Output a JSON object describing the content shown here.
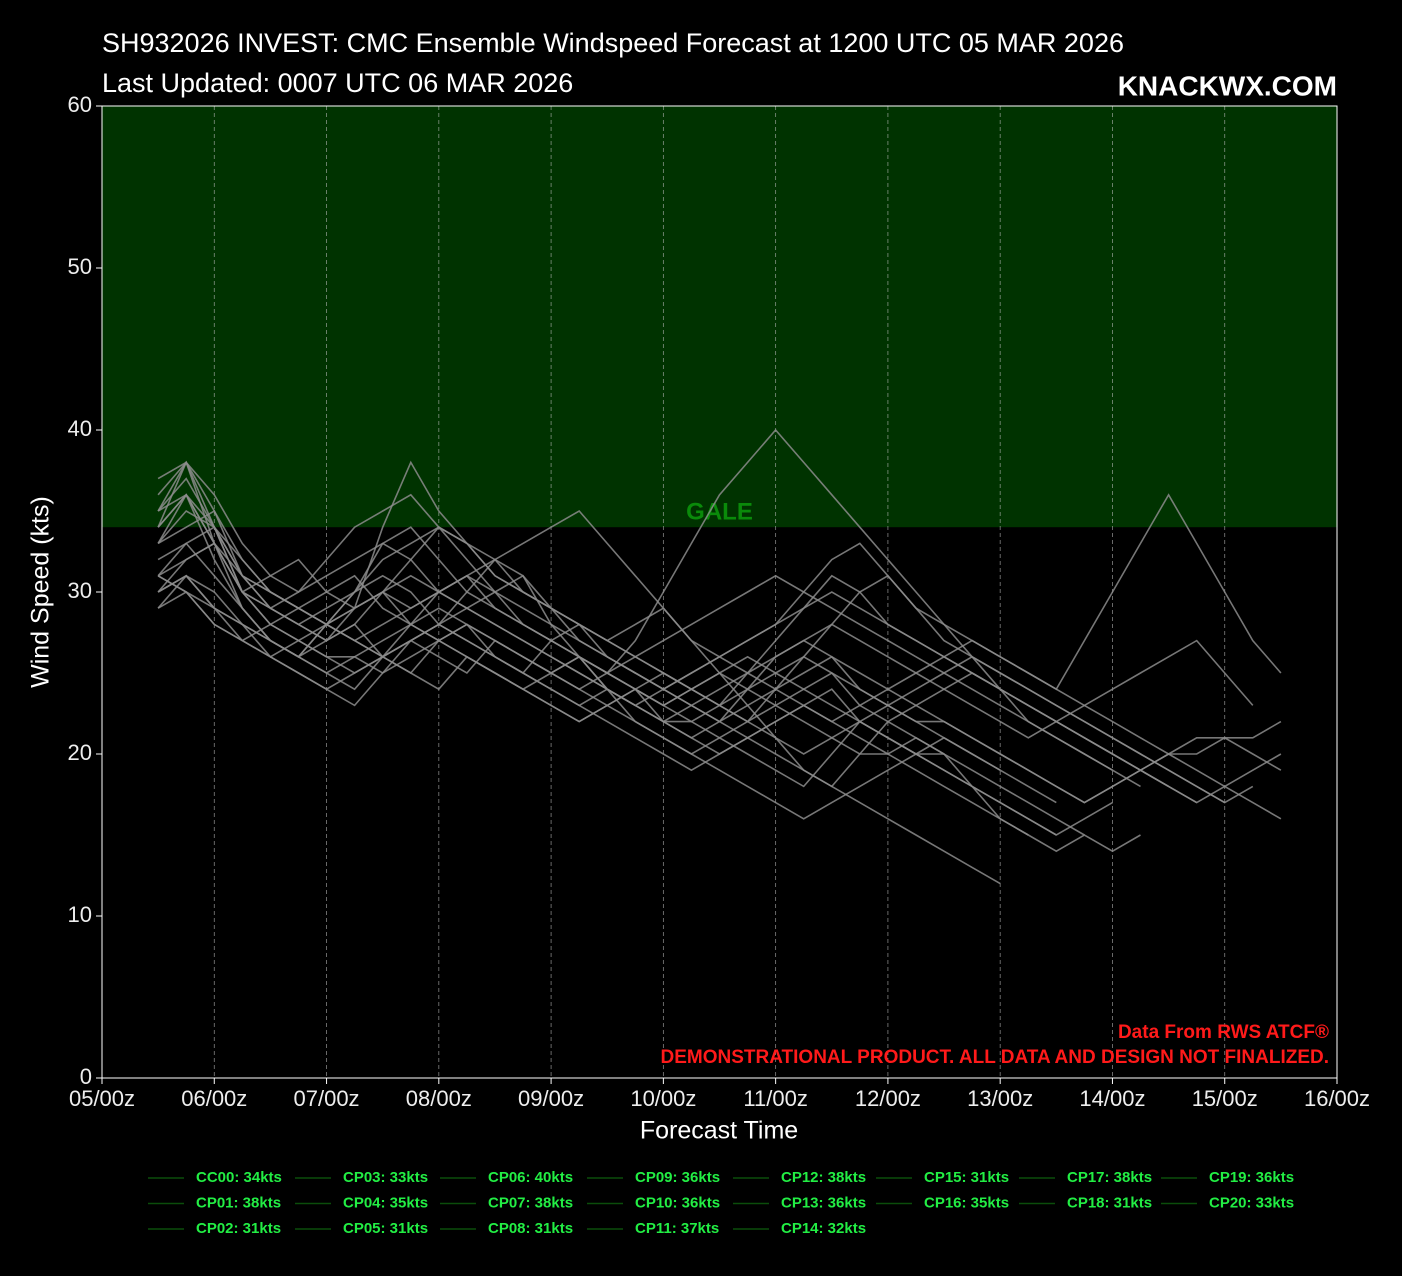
{
  "chart_data": {
    "type": "line",
    "title": "SH932026 INVEST: CMC Ensemble Windspeed Forecast at 1200 UTC 05 MAR 2026",
    "subtitle": "Last Updated: 0007 UTC 06 MAR 2026",
    "brand": "KNACKWX.COM",
    "source_note": "Data From RWS ATCF®",
    "disclaimer": "DEMONSTRATIONAL PRODUCT. ALL DATA AND DESIGN NOT FINALIZED.",
    "x_label": "Forecast Time",
    "y_label": "Wind Speed (kts)",
    "xlim": [
      0,
      264
    ],
    "xticks": [
      {
        "value": 0,
        "label": "05/00z"
      },
      {
        "value": 24,
        "label": "06/00z"
      },
      {
        "value": 48,
        "label": "07/00z"
      },
      {
        "value": 72,
        "label": "08/00z"
      },
      {
        "value": 96,
        "label": "09/00z"
      },
      {
        "value": 120,
        "label": "10/00z"
      },
      {
        "value": 144,
        "label": "11/00z"
      },
      {
        "value": 168,
        "label": "12/00z"
      },
      {
        "value": 192,
        "label": "13/00z"
      },
      {
        "value": 216,
        "label": "14/00z"
      },
      {
        "value": 240,
        "label": "15/00z"
      },
      {
        "value": 264,
        "label": "16/00z"
      }
    ],
    "ylim": [
      0,
      60
    ],
    "yticks": [
      0,
      10,
      20,
      30,
      40,
      50,
      60
    ],
    "grid": true,
    "threshold": {
      "label": "GALE",
      "value": 34,
      "color": "#003300"
    },
    "legend_color": "#0b4d0b",
    "legend_text_color": "#22ee44",
    "x": [
      12,
      18,
      24,
      30,
      36,
      42,
      48,
      54,
      60,
      66,
      72,
      78,
      84,
      90,
      96,
      102,
      108,
      114,
      120,
      126,
      132,
      138,
      144,
      150,
      156,
      162,
      168,
      174,
      180,
      186,
      192,
      198,
      204,
      210,
      216,
      222,
      228,
      234,
      240,
      246,
      252
    ],
    "series": [
      {
        "name": "CC00: 34kts",
        "color": "#8c8c8c",
        "values": [
          31,
          33,
          34,
          30,
          28,
          27,
          26,
          26,
          25,
          26,
          27,
          28,
          27,
          26,
          25,
          26,
          24,
          23,
          22,
          22,
          23,
          24,
          25,
          26,
          25,
          24,
          23,
          22,
          22,
          21,
          20,
          19,
          18,
          17,
          18,
          19,
          20,
          20,
          21,
          21,
          22
        ]
      },
      {
        "name": "CP01: 38kts",
        "color": "#8c8c8c",
        "values": [
          37,
          38,
          34,
          30,
          29,
          28,
          27,
          29,
          30,
          29,
          30,
          31,
          30,
          28,
          27,
          26,
          25,
          24,
          23,
          24,
          25,
          24,
          23,
          22,
          21,
          20,
          20,
          21,
          20,
          null,
          null,
          null,
          null,
          null,
          null,
          null,
          null,
          null,
          null,
          null,
          null
        ]
      },
      {
        "name": "CP02: 31kts",
        "color": "#8c8c8c",
        "values": [
          31,
          30,
          29,
          28,
          27,
          26,
          27,
          28,
          26,
          25,
          24,
          26,
          25,
          24,
          23,
          22,
          23,
          24,
          22,
          21,
          20,
          21,
          22,
          23,
          24,
          22,
          21,
          20,
          19,
          18,
          17,
          16,
          15,
          null,
          null,
          null,
          null,
          null,
          null,
          null,
          null
        ]
      },
      {
        "name": "CP03: 33kts",
        "color": "#8c8c8c",
        "values": [
          30,
          32,
          33,
          29,
          27,
          26,
          25,
          24,
          26,
          27,
          26,
          25,
          27,
          26,
          25,
          24,
          23,
          22,
          21,
          20,
          21,
          22,
          23,
          24,
          25,
          23,
          22,
          21,
          20,
          18,
          16,
          15,
          14,
          15,
          14,
          15,
          null,
          null,
          null,
          null,
          null
        ]
      },
      {
        "name": "CP04: 35kts",
        "color": "#8c8c8c",
        "values": [
          33,
          34,
          35,
          31,
          29,
          28,
          29,
          30,
          31,
          30,
          28,
          27,
          26,
          25,
          27,
          28,
          26,
          25,
          24,
          23,
          22,
          24,
          26,
          27,
          26,
          25,
          24,
          23,
          22,
          21,
          20,
          19,
          18,
          17,
          18,
          19,
          20,
          21,
          21,
          20,
          19
        ]
      },
      {
        "name": "CP05: 31kts",
        "color": "#8c8c8c",
        "values": [
          29,
          31,
          30,
          28,
          26,
          27,
          28,
          27,
          26,
          25,
          27,
          28,
          26,
          25,
          24,
          23,
          24,
          22,
          21,
          20,
          19,
          18,
          17,
          16,
          17,
          18,
          19,
          20,
          21,
          20,
          19,
          18,
          17,
          null,
          null,
          null,
          null,
          null,
          null,
          null,
          null
        ]
      },
      {
        "name": "CP06: 40kts",
        "color": "#8c8c8c",
        "values": [
          32,
          33,
          31,
          29,
          27,
          26,
          25,
          26,
          27,
          28,
          29,
          28,
          27,
          26,
          25,
          24,
          25,
          27,
          30,
          33,
          36,
          38,
          40,
          38,
          36,
          34,
          32,
          30,
          28,
          26,
          24,
          22,
          21,
          20,
          19,
          18,
          null,
          null,
          null,
          null,
          null
        ]
      },
      {
        "name": "CP07: 38kts",
        "color": "#8c8c8c",
        "values": [
          36,
          38,
          33,
          30,
          31,
          32,
          30,
          29,
          34,
          38,
          35,
          33,
          31,
          30,
          29,
          28,
          27,
          26,
          25,
          24,
          23,
          22,
          24,
          26,
          28,
          30,
          31,
          29,
          27,
          26,
          25,
          24,
          23,
          22,
          21,
          20,
          19,
          18,
          17,
          null,
          null
        ]
      },
      {
        "name": "CP08: 31kts",
        "color": "#8c8c8c",
        "values": [
          30,
          31,
          29,
          28,
          27,
          26,
          28,
          29,
          30,
          28,
          27,
          26,
          25,
          24,
          25,
          26,
          24,
          23,
          22,
          21,
          22,
          23,
          24,
          25,
          26,
          24,
          23,
          22,
          21,
          20,
          19,
          null,
          null,
          null,
          null,
          null,
          null,
          null,
          null,
          null,
          null
        ]
      },
      {
        "name": "CP09: 36kts",
        "color": "#8c8c8c",
        "values": [
          35,
          36,
          33,
          30,
          29,
          28,
          27,
          28,
          30,
          32,
          34,
          33,
          31,
          30,
          29,
          28,
          27,
          26,
          25,
          24,
          23,
          25,
          27,
          29,
          31,
          30,
          28,
          27,
          26,
          25,
          24,
          23,
          22,
          21,
          20,
          19,
          18,
          17,
          null,
          null,
          null
        ]
      },
      {
        "name": "CP10: 36kts",
        "color": "#8c8c8c",
        "values": [
          34,
          36,
          32,
          29,
          27,
          26,
          28,
          30,
          32,
          33,
          34,
          32,
          30,
          29,
          28,
          27,
          26,
          25,
          24,
          25,
          26,
          27,
          28,
          30,
          32,
          33,
          31,
          29,
          28,
          27,
          26,
          25,
          24,
          23,
          22,
          21,
          20,
          19,
          18,
          17,
          16
        ]
      },
      {
        "name": "CP11: 37kts",
        "color": "#8c8c8c",
        "values": [
          35,
          37,
          34,
          31,
          29,
          30,
          31,
          32,
          33,
          32,
          30,
          29,
          28,
          27,
          26,
          25,
          24,
          23,
          24,
          25,
          26,
          27,
          28,
          29,
          30,
          29,
          28,
          27,
          26,
          25,
          24,
          23,
          22,
          21,
          20,
          19,
          18,
          null,
          null,
          null,
          null
        ]
      },
      {
        "name": "CP12: 38kts",
        "color": "#8c8c8c",
        "values": [
          34,
          38,
          35,
          32,
          30,
          29,
          28,
          29,
          30,
          31,
          30,
          29,
          28,
          27,
          26,
          25,
          24,
          23,
          22,
          23,
          24,
          25,
          26,
          27,
          28,
          27,
          26,
          25,
          24,
          23,
          22,
          21,
          22,
          23,
          24,
          25,
          26,
          27,
          25,
          23,
          null
        ]
      },
      {
        "name": "CP13: 36kts",
        "color": "#8c8c8c",
        "values": [
          33,
          36,
          34,
          31,
          30,
          29,
          28,
          30,
          33,
          34,
          32,
          30,
          29,
          28,
          27,
          26,
          25,
          26,
          27,
          28,
          29,
          30,
          31,
          30,
          29,
          28,
          27,
          26,
          25,
          24,
          23,
          22,
          21,
          20,
          19,
          null,
          null,
          null,
          null,
          null,
          null
        ]
      },
      {
        "name": "CP14: 32kts",
        "color": "#8c8c8c",
        "values": [
          30,
          31,
          29,
          27,
          26,
          25,
          24,
          23,
          25,
          27,
          28,
          30,
          32,
          31,
          29,
          27,
          26,
          25,
          24,
          23,
          22,
          21,
          20,
          19,
          18,
          17,
          16,
          15,
          14,
          13,
          12,
          null,
          null,
          null,
          null,
          null,
          null,
          null,
          null,
          null,
          null
        ]
      },
      {
        "name": "CP15: 31kts",
        "color": "#8c8c8c",
        "values": [
          29,
          30,
          28,
          27,
          28,
          29,
          30,
          31,
          29,
          28,
          27,
          26,
          25,
          24,
          23,
          22,
          23,
          24,
          25,
          24,
          23,
          22,
          21,
          20,
          21,
          22,
          23,
          24,
          25,
          26,
          25,
          24,
          23,
          22,
          21,
          20,
          19,
          18,
          17,
          18,
          null
        ]
      },
      {
        "name": "CP16: 35kts",
        "color": "#8c8c8c",
        "values": [
          33,
          35,
          34,
          32,
          30,
          29,
          28,
          27,
          26,
          28,
          30,
          31,
          29,
          28,
          27,
          26,
          25,
          24,
          23,
          24,
          25,
          26,
          25,
          24,
          23,
          22,
          21,
          20,
          20,
          19,
          18,
          17,
          16,
          15,
          null,
          null,
          null,
          null,
          null,
          null,
          null
        ]
      },
      {
        "name": "CP17: 38kts",
        "color": "#8c8c8c",
        "values": [
          35,
          38,
          36,
          33,
          31,
          30,
          32,
          34,
          35,
          36,
          34,
          33,
          32,
          30,
          29,
          28,
          27,
          28,
          29,
          27,
          26,
          25,
          24,
          23,
          22,
          23,
          24,
          25,
          26,
          27,
          26,
          25,
          24,
          27,
          30,
          33,
          36,
          33,
          30,
          27,
          25
        ]
      },
      {
        "name": "CP18: 31kts",
        "color": "#8c8c8c",
        "values": [
          31,
          30,
          28,
          27,
          26,
          25,
          24,
          25,
          26,
          27,
          28,
          29,
          30,
          31,
          28,
          26,
          25,
          24,
          23,
          22,
          21,
          20,
          19,
          18,
          20,
          22,
          21,
          20,
          19,
          18,
          17,
          16,
          15,
          16,
          17,
          null,
          null,
          null,
          null,
          null,
          null
        ]
      },
      {
        "name": "CP19: 36kts",
        "color": "#8c8c8c",
        "values": [
          34,
          36,
          33,
          31,
          30,
          29,
          28,
          27,
          28,
          29,
          30,
          31,
          32,
          33,
          34,
          35,
          33,
          31,
          29,
          27,
          25,
          23,
          21,
          19,
          18,
          20,
          22,
          23,
          24,
          25,
          24,
          23,
          22,
          21,
          20,
          19,
          18,
          17,
          18,
          19,
          20
        ]
      },
      {
        "name": "CP20: 33kts",
        "color": "#8c8c8c",
        "values": [
          31,
          32,
          33,
          30,
          28,
          27,
          26,
          25,
          26,
          27,
          28,
          27,
          26,
          25,
          24,
          23,
          22,
          21,
          20,
          19,
          20,
          21,
          22,
          23,
          22,
          21,
          20,
          19,
          18,
          17,
          16,
          15,
          null,
          null,
          null,
          null,
          null,
          null,
          null,
          null,
          null
        ]
      }
    ]
  }
}
